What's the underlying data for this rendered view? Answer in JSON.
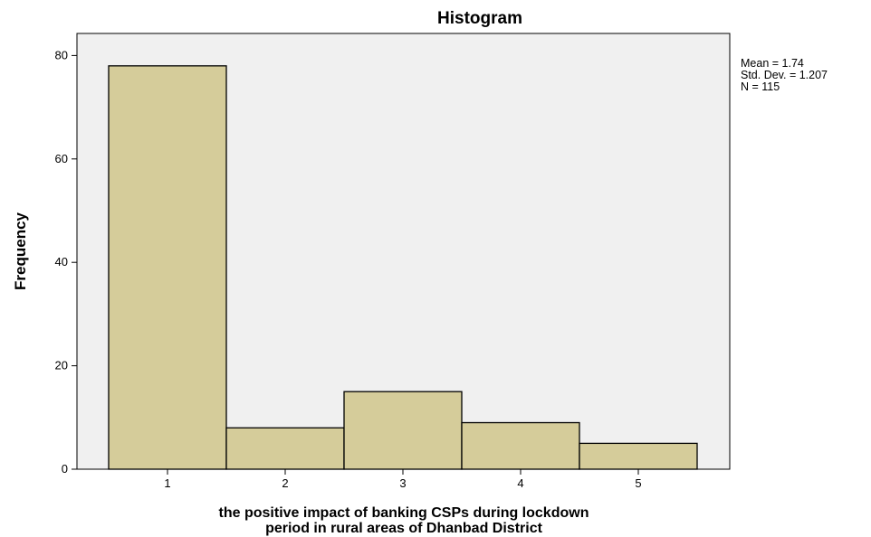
{
  "chart_data": {
    "type": "bar",
    "title": "Histogram",
    "xlabel": [
      "the positive impact of banking  CSPs during lockdown",
      "period in rural areas of Dhanbad District"
    ],
    "ylabel": "Frequency",
    "categories": [
      "1",
      "2",
      "3",
      "4",
      "5"
    ],
    "values": [
      78,
      8,
      15,
      9,
      5
    ],
    "yticks": [
      "0",
      "20",
      "40",
      "60",
      "80"
    ],
    "ylim": [
      0,
      84
    ],
    "grid": false,
    "stats": [
      "Mean = 1.74",
      "Std. Dev. = 1.207",
      "N = 115"
    ],
    "colors": {
      "bar_fill": "#d5cc9a",
      "bar_stroke": "#000000",
      "plot_background": "#f0f0f0"
    }
  }
}
